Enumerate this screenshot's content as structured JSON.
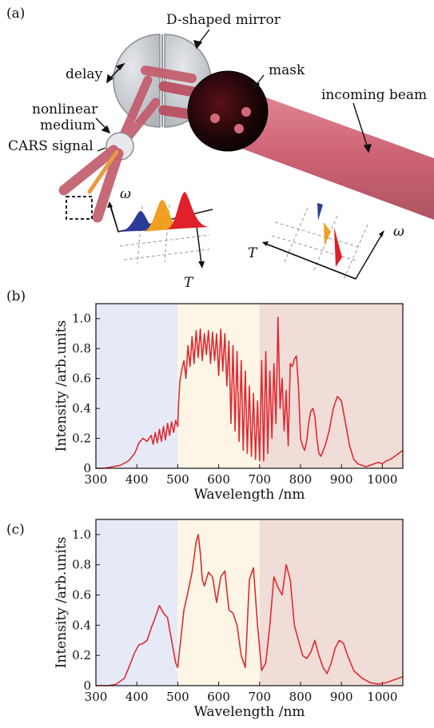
{
  "panel_a": {
    "panel_label": "(a)",
    "labels": {
      "mirror": "D-shaped mirror",
      "delay": "delay",
      "mask": "mask",
      "beam": "incoming beam",
      "medium_line1": "nonlinear",
      "medium_line2": "medium",
      "signal": "CARS signal"
    },
    "left_plot_axes": {
      "freq": "ω",
      "time": "T"
    },
    "right_plot_axes": {
      "freq": "ω",
      "time": "T"
    },
    "pulse_colors": [
      "#2c3a9a",
      "#f0a020",
      "#e0202a"
    ],
    "beam_color": "#c9566a"
  },
  "chart_data": [
    {
      "type": "line",
      "panel_label": "(b)",
      "xlabel": "Wavelength /nm",
      "ylabel": "Intensity /arb.units",
      "xlim": [
        300,
        1050
      ],
      "ylim": [
        0,
        1.1
      ],
      "xticks": [
        300,
        400,
        500,
        600,
        700,
        800,
        900,
        1000
      ],
      "yticks": [
        0,
        0.2,
        0.4,
        0.6,
        0.8,
        1.0
      ],
      "ytick_labels": [
        "0",
        "0.2",
        "0.4",
        "0.6",
        "0.8",
        "1.0"
      ],
      "regions": [
        {
          "from": 300,
          "to": 500,
          "color": "#e6eaf6"
        },
        {
          "from": 500,
          "to": 700,
          "color": "#fdf6e6"
        },
        {
          "from": 700,
          "to": 1050,
          "color": "#f1ddd8"
        }
      ],
      "line_color": "#e02a32",
      "x": [
        300,
        320,
        340,
        360,
        380,
        395,
        405,
        415,
        425,
        435,
        440,
        445,
        450,
        455,
        460,
        465,
        470,
        475,
        480,
        485,
        490,
        495,
        500,
        502,
        505,
        510,
        515,
        520,
        525,
        530,
        535,
        540,
        545,
        550,
        555,
        560,
        565,
        570,
        575,
        580,
        585,
        590,
        595,
        600,
        605,
        610,
        615,
        620,
        625,
        630,
        635,
        640,
        645,
        650,
        655,
        660,
        665,
        670,
        675,
        680,
        685,
        690,
        695,
        700,
        705,
        710,
        715,
        720,
        725,
        730,
        735,
        740,
        745,
        750,
        755,
        760,
        765,
        770,
        775,
        780,
        785,
        790,
        795,
        800,
        805,
        810,
        815,
        820,
        825,
        830,
        835,
        840,
        845,
        850,
        860,
        870,
        880,
        890,
        900,
        910,
        920,
        930,
        940,
        950,
        960,
        970,
        980,
        990,
        1000,
        1010,
        1020,
        1030,
        1040,
        1050
      ],
      "y": [
        0.0,
        0.0,
        0.01,
        0.02,
        0.05,
        0.1,
        0.17,
        0.2,
        0.18,
        0.22,
        0.16,
        0.24,
        0.17,
        0.26,
        0.18,
        0.28,
        0.19,
        0.3,
        0.22,
        0.31,
        0.24,
        0.32,
        0.28,
        0.43,
        0.58,
        0.66,
        0.72,
        0.6,
        0.82,
        0.68,
        0.88,
        0.7,
        0.92,
        0.74,
        0.93,
        0.72,
        0.9,
        0.76,
        0.92,
        0.7,
        0.91,
        0.72,
        0.9,
        0.62,
        0.93,
        0.65,
        0.9,
        0.55,
        0.85,
        0.3,
        0.82,
        0.25,
        0.78,
        0.18,
        0.72,
        0.12,
        0.65,
        0.1,
        0.55,
        0.08,
        0.5,
        0.06,
        0.45,
        0.05,
        0.72,
        0.05,
        0.78,
        0.1,
        0.65,
        0.2,
        0.7,
        0.3,
        1.01,
        0.4,
        0.6,
        0.25,
        0.52,
        0.15,
        0.7,
        0.68,
        0.73,
        0.75,
        0.55,
        0.2,
        0.15,
        0.12,
        0.18,
        0.3,
        0.38,
        0.4,
        0.35,
        0.2,
        0.1,
        0.08,
        0.15,
        0.25,
        0.4,
        0.48,
        0.45,
        0.3,
        0.15,
        0.06,
        0.03,
        0.02,
        0.01,
        0.02,
        0.03,
        0.04,
        0.03,
        0.05,
        0.06,
        0.08,
        0.1,
        0.12
      ]
    },
    {
      "type": "line",
      "panel_label": "(c)",
      "xlabel": "Wavelength /nm",
      "ylabel": "Intensity /arb.units",
      "xlim": [
        300,
        1050
      ],
      "ylim": [
        0,
        1.1
      ],
      "xticks": [
        300,
        400,
        500,
        600,
        700,
        800,
        900,
        1000
      ],
      "yticks": [
        0,
        0.2,
        0.4,
        0.6,
        0.8,
        1.0
      ],
      "ytick_labels": [
        "0",
        "0.2",
        "0.4",
        "0.6",
        "0.8",
        "1.0"
      ],
      "regions": [
        {
          "from": 300,
          "to": 500,
          "color": "#e6eaf6"
        },
        {
          "from": 500,
          "to": 700,
          "color": "#fdf6e6"
        },
        {
          "from": 700,
          "to": 1050,
          "color": "#f1ddd8"
        }
      ],
      "line_color": "#e02a32",
      "x": [
        300,
        330,
        350,
        370,
        385,
        395,
        405,
        415,
        425,
        435,
        445,
        455,
        465,
        475,
        485,
        495,
        500,
        505,
        515,
        525,
        535,
        545,
        550,
        555,
        560,
        565,
        575,
        585,
        595,
        605,
        615,
        625,
        635,
        645,
        655,
        665,
        675,
        685,
        695,
        705,
        715,
        725,
        735,
        745,
        755,
        765,
        775,
        785,
        795,
        805,
        815,
        825,
        835,
        845,
        855,
        865,
        875,
        885,
        895,
        905,
        915,
        930,
        950,
        970,
        990,
        1010,
        1030,
        1050
      ],
      "y": [
        0.0,
        0.0,
        0.01,
        0.05,
        0.15,
        0.22,
        0.27,
        0.28,
        0.3,
        0.38,
        0.45,
        0.53,
        0.48,
        0.45,
        0.3,
        0.15,
        0.12,
        0.25,
        0.5,
        0.62,
        0.75,
        0.95,
        1.0,
        0.88,
        0.7,
        0.66,
        0.75,
        0.72,
        0.55,
        0.72,
        0.76,
        0.5,
        0.48,
        0.4,
        0.2,
        0.12,
        0.7,
        0.78,
        0.4,
        0.1,
        0.15,
        0.4,
        0.72,
        0.65,
        0.6,
        0.8,
        0.7,
        0.4,
        0.3,
        0.2,
        0.18,
        0.22,
        0.3,
        0.2,
        0.12,
        0.08,
        0.15,
        0.25,
        0.3,
        0.28,
        0.2,
        0.1,
        0.05,
        0.02,
        0.01,
        0.02,
        0.04,
        0.06
      ]
    }
  ]
}
